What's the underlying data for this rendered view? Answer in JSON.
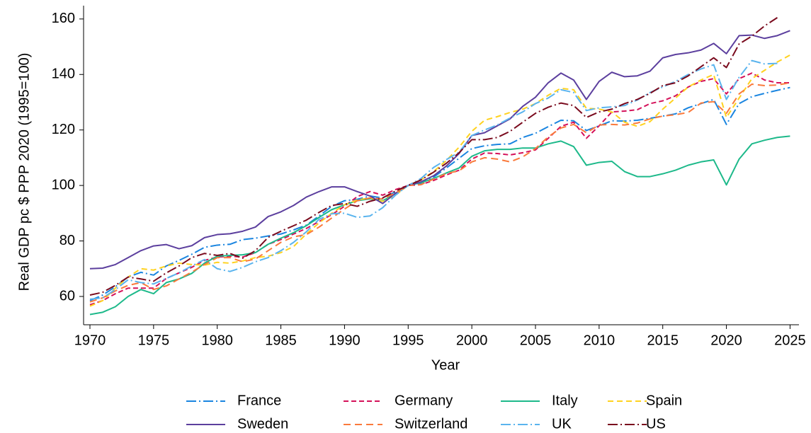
{
  "chart_data": {
    "type": "line",
    "xlabel": "Year",
    "ylabel": "Real GDP pc $ PPP 2020 (1995=100)",
    "x": [
      1970,
      1971,
      1972,
      1973,
      1974,
      1975,
      1976,
      1977,
      1978,
      1979,
      1980,
      1981,
      1982,
      1983,
      1984,
      1985,
      1986,
      1987,
      1988,
      1989,
      1990,
      1991,
      1992,
      1993,
      1994,
      1995,
      1996,
      1997,
      1998,
      1999,
      2000,
      2001,
      2002,
      2003,
      2004,
      2005,
      2006,
      2007,
      2008,
      2009,
      2010,
      2011,
      2012,
      2013,
      2014,
      2015,
      2016,
      2017,
      2018,
      2019,
      2020,
      2021,
      2022,
      2023,
      2024,
      2025
    ],
    "xlim": [
      1969.5,
      2025.7
    ],
    "xticks": [
      1970,
      1975,
      1980,
      1985,
      1990,
      1995,
      2000,
      2005,
      2010,
      2015,
      2020,
      2025
    ],
    "ylim": [
      49.8,
      164.8
    ],
    "yticks": [
      60,
      80,
      100,
      120,
      140,
      160
    ],
    "grid": false,
    "legend": "bottom",
    "series": [
      {
        "name": "France",
        "color": "#1a85e0",
        "values": [
          58.5,
          60.5,
          63.5,
          67,
          68.7,
          67.7,
          71,
          73,
          75.2,
          77.7,
          78.5,
          78.8,
          80.5,
          81,
          81.8,
          82.5,
          84,
          85.7,
          89,
          92.5,
          94.5,
          95,
          96.2,
          95.5,
          97.7,
          100,
          100.8,
          103,
          106.3,
          109.8,
          113.3,
          114.3,
          114.8,
          115,
          117.3,
          118.8,
          121.2,
          123.5,
          123.3,
          119.8,
          121.5,
          123.3,
          123.2,
          123.5,
          124.2,
          125,
          125.8,
          128,
          129.5,
          131,
          122,
          129.5,
          132,
          133.2,
          134.3,
          135.3
        ]
      },
      {
        "name": "Germany",
        "color": "#d41159",
        "values": [
          57,
          58.5,
          61,
          63,
          63,
          63,
          66.5,
          68.5,
          70.5,
          73,
          74.2,
          74.5,
          74.2,
          75.8,
          78.8,
          80.5,
          82.5,
          84.5,
          87,
          89.5,
          92.5,
          96,
          97.8,
          96.5,
          98.5,
          100,
          100.3,
          101.8,
          103.8,
          105.5,
          109.5,
          111.7,
          111.5,
          111,
          111.8,
          112.8,
          117,
          121.3,
          122.8,
          117,
          121.5,
          126.5,
          126.8,
          127.3,
          129.5,
          130.5,
          132.3,
          135.5,
          137.5,
          138.5,
          133,
          138.5,
          140.5,
          138,
          137,
          137
        ]
      },
      {
        "name": "Italy",
        "color": "#1db98a",
        "values": [
          53.5,
          54.3,
          56.3,
          60,
          62.5,
          61,
          65,
          66.3,
          68.3,
          72,
          74.5,
          74.8,
          75,
          75.8,
          78.8,
          81,
          83,
          85.5,
          88.5,
          91.3,
          93,
          94.5,
          95.2,
          94.5,
          97,
          100,
          101,
          102.5,
          104.5,
          106.3,
          110.5,
          112.5,
          113,
          113,
          113.5,
          113.5,
          115,
          116,
          114,
          107.3,
          108.3,
          108.7,
          105,
          103.2,
          103.2,
          104.2,
          105.5,
          107.3,
          108.5,
          109.2,
          100.2,
          109.5,
          115,
          116.3,
          117.3,
          117.8
        ]
      },
      {
        "name": "Spain",
        "color": "#ffd21f",
        "values": [
          56.5,
          58.5,
          63,
          67,
          70,
          69.5,
          71,
          72,
          71.5,
          71.3,
          72.3,
          72,
          72.8,
          74,
          74.5,
          75.8,
          78,
          82.5,
          86.5,
          90,
          93,
          94.8,
          95.5,
          94.3,
          96.5,
          100,
          102,
          105,
          109,
          113.8,
          119.5,
          123.5,
          124.8,
          126.3,
          127.5,
          129.5,
          132.5,
          135,
          134.5,
          127.8,
          127.5,
          126.5,
          122.8,
          121.3,
          123,
          127.5,
          131.5,
          135.5,
          138,
          140,
          124.5,
          131.5,
          138.5,
          141.5,
          144.5,
          147
        ]
      },
      {
        "name": "Sweden",
        "color": "#5c3f9e",
        "values": [
          70,
          70.2,
          71.5,
          74,
          76.5,
          78.2,
          78.7,
          77.2,
          78.3,
          81.2,
          82.3,
          82.6,
          83.5,
          85,
          88.8,
          90.5,
          92.8,
          95.8,
          97.8,
          99.5,
          99.5,
          97.8,
          96.2,
          93.5,
          97.2,
          100,
          101.3,
          103.5,
          107,
          111.5,
          118,
          119,
          121.5,
          124,
          128.5,
          131.8,
          137,
          140.5,
          138,
          131,
          137.5,
          140.8,
          139.2,
          139.5,
          141.2,
          146,
          147.2,
          147.8,
          148.8,
          151.2,
          147.5,
          154,
          154.2,
          153,
          154,
          155.8
        ]
      },
      {
        "name": "Switzerland",
        "color": "#fa7a3c",
        "values": [
          58,
          59.5,
          62,
          64,
          65,
          62.5,
          63.8,
          66.3,
          68.8,
          71.5,
          74,
          74,
          72.5,
          73.5,
          76.5,
          79.5,
          81.5,
          82.3,
          85,
          88.3,
          91.5,
          94.5,
          95.5,
          95.2,
          97.3,
          100,
          100.3,
          102.3,
          104.3,
          105.3,
          108.5,
          110,
          109.5,
          108.5,
          110.3,
          113.3,
          117.5,
          120.7,
          122,
          119,
          121.8,
          122,
          121.8,
          122.5,
          124,
          125,
          125.5,
          126.3,
          129.7,
          130.2,
          126,
          133,
          136.5,
          136,
          136.2,
          137
        ]
      },
      {
        "name": "UK",
        "color": "#5ab4ee",
        "values": [
          59,
          59.5,
          62.5,
          66,
          65,
          64.5,
          66.5,
          68.5,
          71,
          73.3,
          70,
          69,
          70.5,
          72.5,
          74,
          76.5,
          79.5,
          83.3,
          87.8,
          89.8,
          90,
          88.5,
          89,
          92,
          96.5,
          100,
          102.5,
          106.5,
          109.3,
          112,
          118,
          120,
          121.8,
          124.3,
          126.5,
          129.5,
          131.5,
          134.5,
          133.5,
          127,
          128,
          128.3,
          128.8,
          130.8,
          133.5,
          135.5,
          137.5,
          140,
          142,
          143.5,
          131,
          139,
          145,
          143.8,
          144,
          null
        ]
      },
      {
        "name": "US",
        "color": "#7a0b1e",
        "values": [
          60.5,
          61.5,
          64,
          67,
          66.3,
          65.5,
          68.5,
          71,
          74,
          75.5,
          74.8,
          75.5,
          73.8,
          76.5,
          81.3,
          83.5,
          85.5,
          87.5,
          90.3,
          92.8,
          93.5,
          92.5,
          94.3,
          95.5,
          98,
          100,
          102,
          104.8,
          108,
          111.8,
          116.5,
          116.5,
          117.3,
          119.5,
          122.8,
          126,
          128.2,
          129.7,
          128.8,
          124.5,
          126.5,
          127.5,
          129.5,
          131,
          133.2,
          136,
          137,
          139.5,
          142.8,
          146,
          142.5,
          151,
          153.8,
          157.5,
          160.5,
          null
        ]
      }
    ]
  }
}
